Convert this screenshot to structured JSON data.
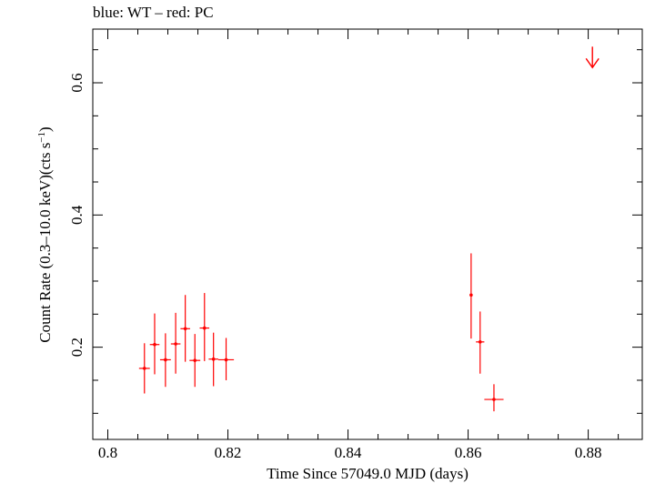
{
  "chart_data": {
    "type": "scatter",
    "title": "blue: WT – red: PC",
    "xlabel": "Time Since 57049.0 MJD (days)",
    "ylabel_main": "Count Rate (0.3–10.0 keV)(cts s",
    "ylabel_sup": "−1",
    "ylabel_close": ")",
    "xlim": [
      0.7975,
      0.889
    ],
    "ylim": [
      0.0605,
      0.6812
    ],
    "x_ticks": [
      0.8,
      0.82,
      0.84,
      0.86,
      0.88
    ],
    "x_tick_labels": [
      "0.8",
      "0.82",
      "0.84",
      "0.86",
      "0.88"
    ],
    "y_ticks": [
      0.2,
      0.4,
      0.6
    ],
    "y_tick_labels": [
      "0.2",
      "0.4",
      "0.6"
    ],
    "x_minor_step": 0.005,
    "y_minor_step": 0.05,
    "grid": false,
    "series": [
      {
        "color": "#ff0000",
        "points": [
          {
            "x": 0.8061,
            "xerr": 0.0009,
            "y": 0.168,
            "yerr_low": 0.038,
            "yerr_high": 0.038
          },
          {
            "x": 0.8078,
            "xerr": 0.0008,
            "y": 0.204,
            "yerr_low": 0.045,
            "yerr_high": 0.047
          },
          {
            "x": 0.8096,
            "xerr": 0.0009,
            "y": 0.181,
            "yerr_low": 0.041,
            "yerr_high": 0.04
          },
          {
            "x": 0.8113,
            "xerr": 0.0008,
            "y": 0.205,
            "yerr_low": 0.045,
            "yerr_high": 0.047
          },
          {
            "x": 0.8129,
            "xerr": 0.0008,
            "y": 0.228,
            "yerr_low": 0.05,
            "yerr_high": 0.051
          },
          {
            "x": 0.8145,
            "xerr": 0.0009,
            "y": 0.18,
            "yerr_low": 0.04,
            "yerr_high": 0.04
          },
          {
            "x": 0.8161,
            "xerr": 0.0008,
            "y": 0.229,
            "yerr_low": 0.05,
            "yerr_high": 0.053
          },
          {
            "x": 0.8176,
            "xerr": 0.0008,
            "y": 0.182,
            "yerr_low": 0.041,
            "yerr_high": 0.04
          },
          {
            "x": 0.8197,
            "xerr": 0.0013,
            "y": 0.181,
            "yerr_low": 0.031,
            "yerr_high": 0.033
          },
          {
            "x": 0.8605,
            "xerr": 0.0002,
            "y": 0.279,
            "yerr_low": 0.066,
            "yerr_high": 0.063
          },
          {
            "x": 0.862,
            "xerr": 0.0007,
            "y": 0.208,
            "yerr_low": 0.048,
            "yerr_high": 0.046
          },
          {
            "x": 0.8643,
            "xerr": 0.0016,
            "y": 0.121,
            "yerr_low": 0.018,
            "yerr_high": 0.023
          }
        ],
        "upper_limits": [
          {
            "x": 0.8807,
            "y": 0.623
          }
        ]
      }
    ]
  }
}
